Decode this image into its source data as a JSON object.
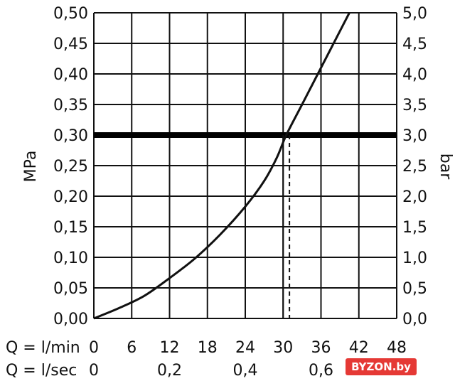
{
  "chart_data": {
    "type": "line",
    "x_unit_label": "Q = l/min",
    "x_ticks": [
      "0",
      "6",
      "12",
      "18",
      "24",
      "30",
      "36",
      "42",
      "48"
    ],
    "x_secondary_label": "Q = l/sec",
    "x_secondary_ticks": [
      {
        "x": 0,
        "label": "0"
      },
      {
        "x": 12,
        "label": "0,2"
      },
      {
        "x": 24,
        "label": "0,4"
      },
      {
        "x": 36,
        "label": "0,6"
      }
    ],
    "xlim": [
      0,
      48
    ],
    "ylabel_left": "MPa",
    "ylim": [
      0,
      0.5
    ],
    "y_ticks_left": [
      "0,00",
      "0,05",
      "0,10",
      "0,15",
      "0,20",
      "0,25",
      "0,30",
      "0,35",
      "0,40",
      "0,45",
      "0,50"
    ],
    "ylabel_right": "bar",
    "y_ticks_right": [
      "0,0",
      "0,5",
      "1,0",
      "1,5",
      "2,0",
      "2,5",
      "3,0",
      "3,5",
      "4,0",
      "4,5",
      "5,0"
    ],
    "grid": true,
    "series": [
      {
        "points": [
          [
            0,
            0.0
          ],
          [
            4,
            0.017
          ],
          [
            8,
            0.037
          ],
          [
            12,
            0.066
          ],
          [
            16,
            0.098
          ],
          [
            20,
            0.137
          ],
          [
            24,
            0.183
          ],
          [
            27,
            0.225
          ],
          [
            29,
            0.263
          ],
          [
            30.5,
            0.3
          ],
          [
            33,
            0.35
          ],
          [
            35.5,
            0.4
          ],
          [
            38,
            0.45
          ],
          [
            40.5,
            0.5
          ]
        ]
      }
    ],
    "reference_line": {
      "y": 0.3
    },
    "marker_lines": [
      {
        "x": 30,
        "style": "solid"
      },
      {
        "x": 31,
        "style": "dashed"
      }
    ]
  },
  "watermark_text": "BYZON.by"
}
